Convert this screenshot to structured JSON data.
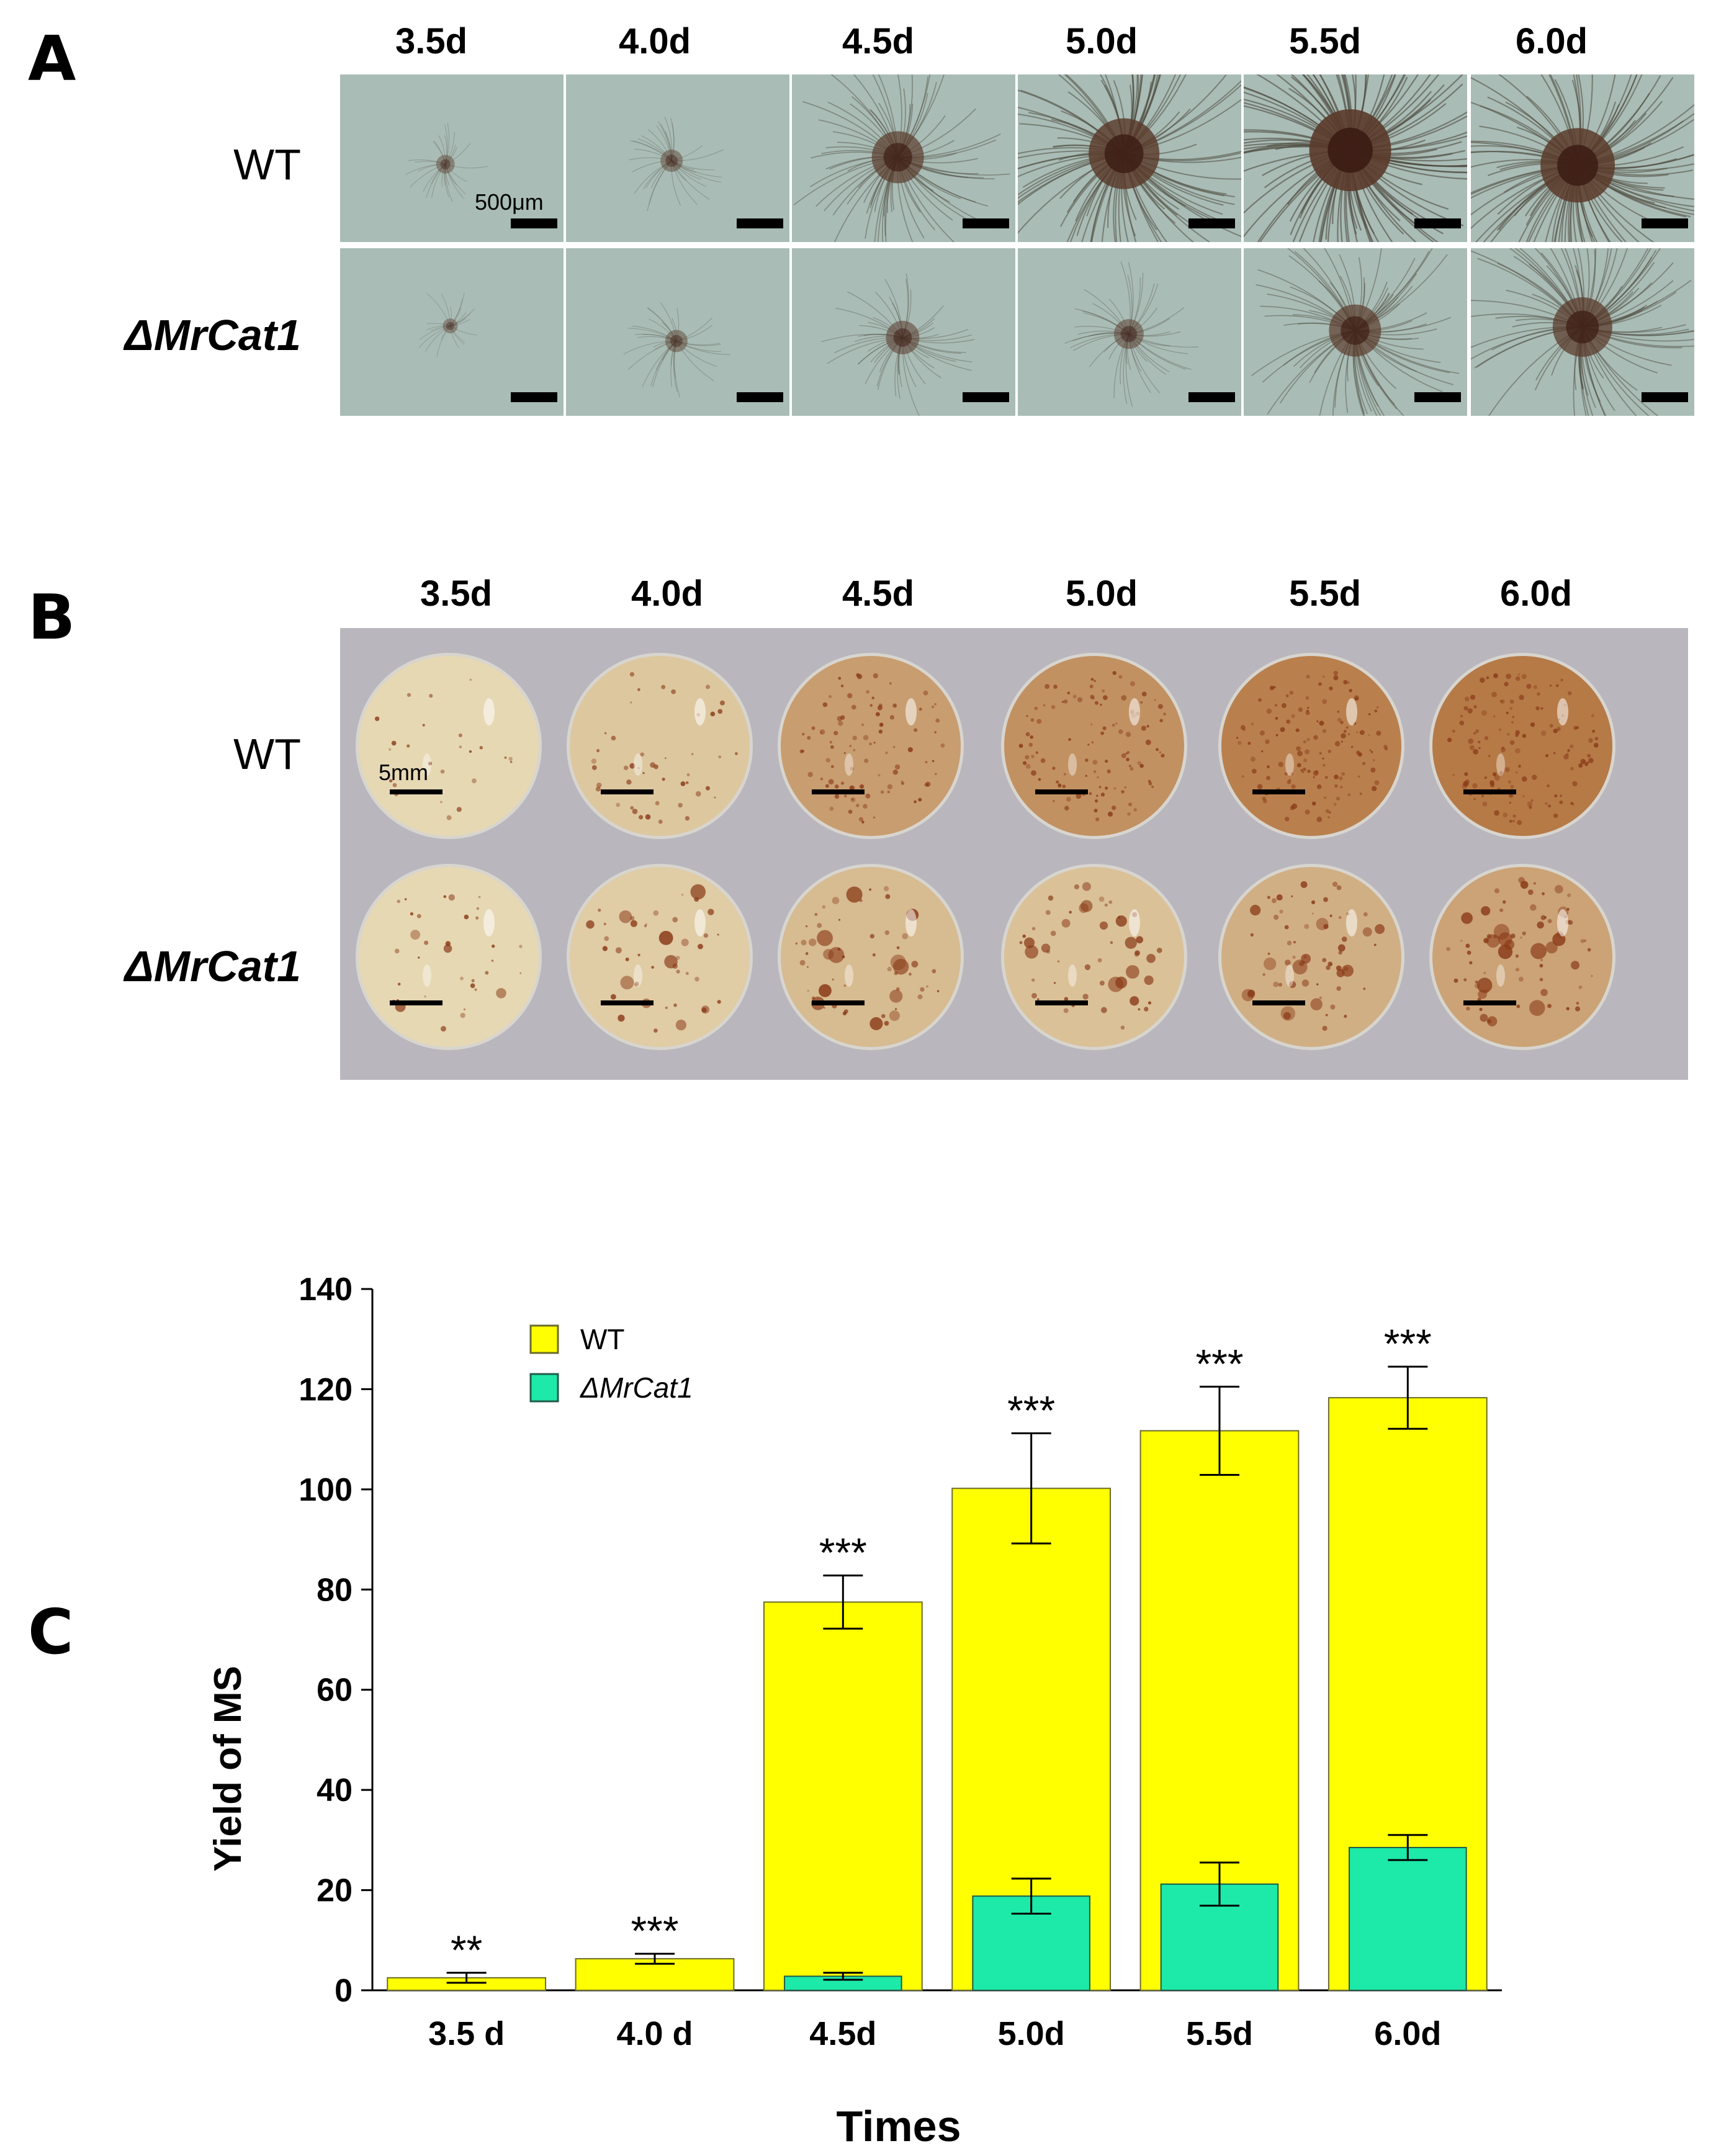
{
  "panels": {
    "a": "A",
    "b": "B",
    "c": "C"
  },
  "days_top": [
    "3.5d",
    "4.0d",
    "4.5d",
    "5.0d",
    "5.5d",
    "6.0d"
  ],
  "rows": {
    "wt": "WT",
    "mutant": "ΔMrCat1"
  },
  "scale": {
    "micro": "500μm",
    "plate": "5mm"
  },
  "colors": {
    "wt": "#ffff00",
    "mutant": "#1de9a8",
    "plate": "#b9b7bd"
  },
  "micro_growth": {
    "wt": [
      0.15,
      0.2,
      0.6,
      0.85,
      1.0,
      0.9
    ],
    "mutant": [
      0.1,
      0.2,
      0.35,
      0.3,
      0.6,
      0.7
    ]
  },
  "plate_stain": {
    "wt": [
      0.1,
      0.25,
      0.6,
      0.7,
      0.85,
      0.9
    ],
    "mutant": [
      0.1,
      0.2,
      0.35,
      0.3,
      0.45,
      0.55
    ]
  },
  "chart_data": {
    "type": "bar",
    "categories": [
      "3.5 d",
      "4.0 d",
      "4.5d",
      "5.0d",
      "5.5d",
      "6.0d"
    ],
    "series": [
      {
        "name": "WT",
        "values": [
          2.5,
          6.3,
          77.5,
          100.2,
          111.7,
          118.3
        ],
        "errors": [
          1.0,
          1.0,
          5.3,
          11.0,
          8.8,
          6.2
        ]
      },
      {
        "name": "ΔMrCat1",
        "values": [
          0,
          0,
          2.8,
          18.8,
          21.2,
          28.5
        ],
        "errors": [
          0,
          0,
          0.7,
          3.5,
          4.3,
          2.5
        ]
      }
    ],
    "significance": [
      "**",
      "***",
      "***",
      "***",
      "***",
      "***"
    ],
    "xlabel": "Times",
    "ylabel": "Yield of MS",
    "ylim": [
      0,
      140
    ],
    "yticks": [
      0,
      20,
      40,
      60,
      80,
      100,
      120,
      140
    ],
    "legend": "top-left",
    "grid": false
  }
}
